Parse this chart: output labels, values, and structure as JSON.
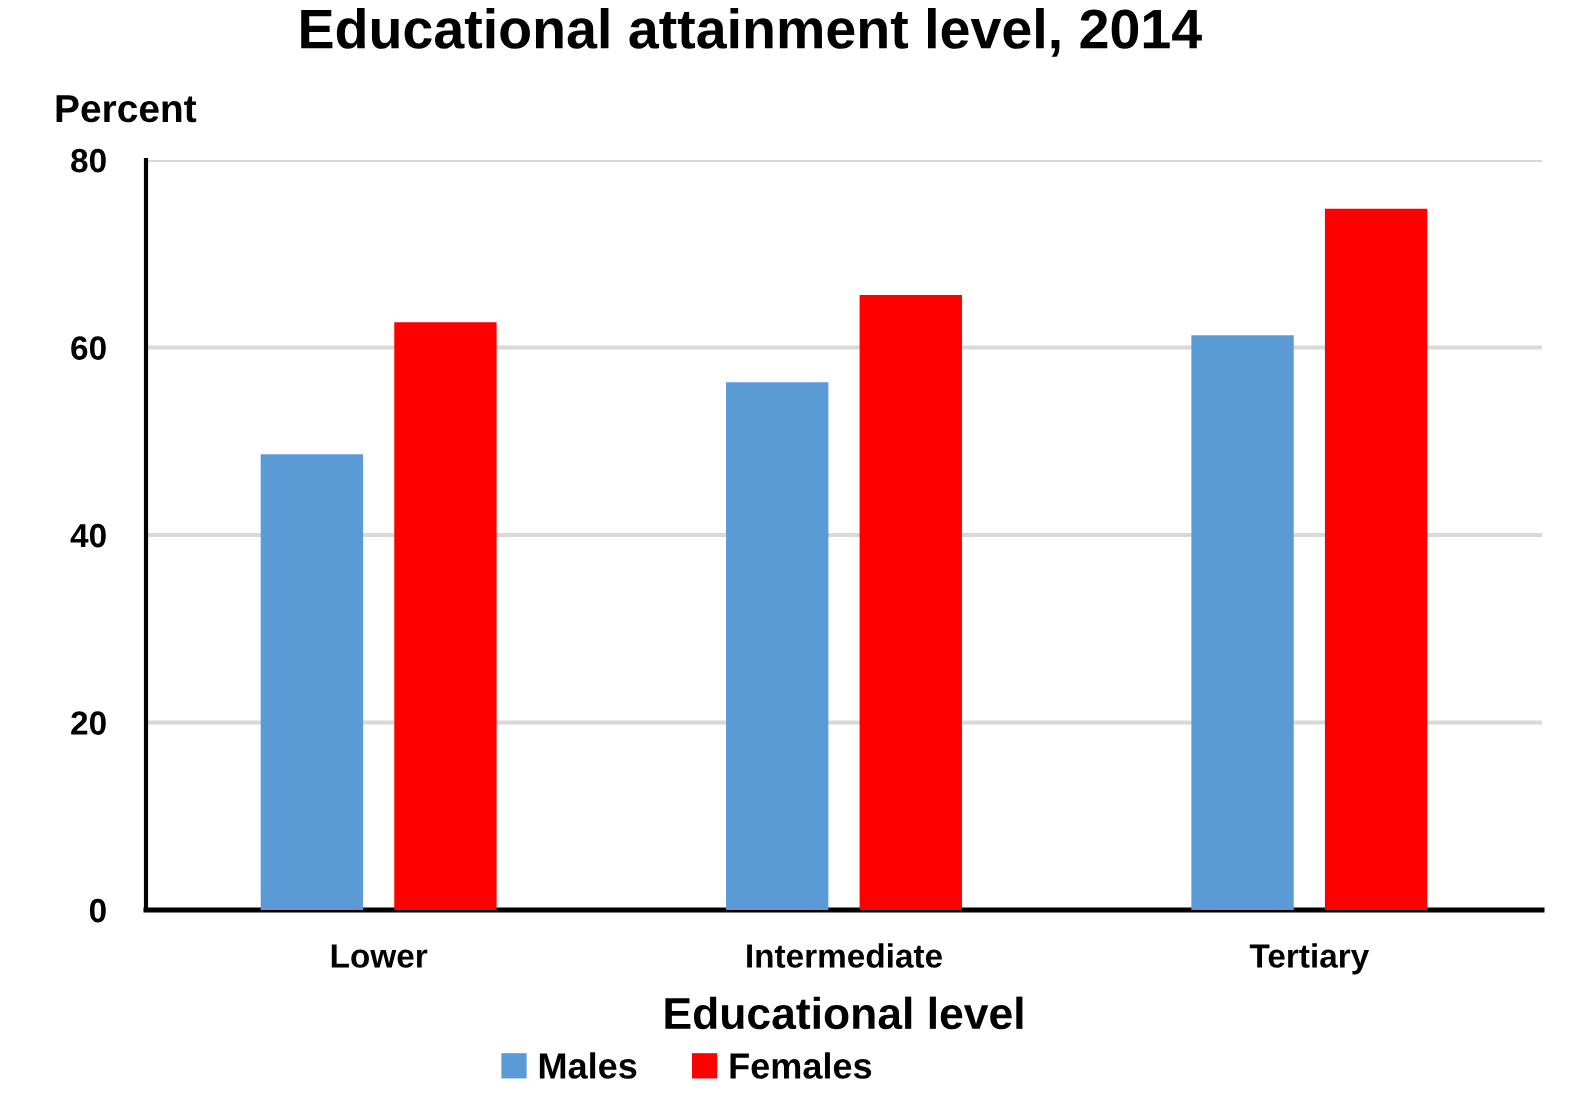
{
  "chart_data": {
    "type": "bar",
    "title": "Educational attainment level, 2014",
    "ylabel": "Percent",
    "xlabel": "Educational level",
    "categories": [
      "Lower",
      "Intermediate",
      "Tertiary"
    ],
    "series": [
      {
        "name": "Males",
        "color": "#5b9bd5",
        "values": [
          48.6,
          56.3,
          61.3
        ]
      },
      {
        "name": "Females",
        "color": "#ff0000",
        "values": [
          62.7,
          65.6,
          74.8
        ]
      }
    ],
    "ylim": [
      0,
      80
    ],
    "yticks": [
      0,
      20,
      40,
      60,
      80
    ],
    "grid": "y",
    "legend": "bottom"
  }
}
